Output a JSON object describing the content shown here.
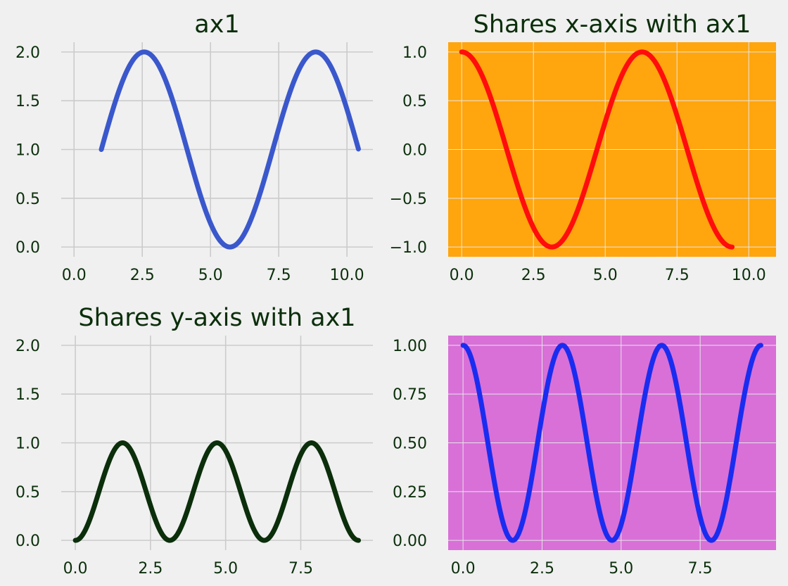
{
  "figure": {
    "background": "#f0f0f0",
    "text_color": "#0b2e0b",
    "grid_color": "#cbcbcb"
  },
  "chart_data": [
    {
      "id": "ax1",
      "type": "line",
      "title": "ax1",
      "xlabel": "",
      "ylabel": "",
      "facecolor": "#f0f0f0",
      "grid": true,
      "xlim": [
        -0.47,
        10.95
      ],
      "ylim": [
        -0.1,
        2.1
      ],
      "xticks": [
        0.0,
        2.5,
        5.0,
        7.5,
        10.0
      ],
      "xtick_labels": [
        "0.0",
        "2.5",
        "5.0",
        "7.5",
        "10.0"
      ],
      "yticks": [
        0.0,
        0.5,
        1.0,
        1.5,
        2.0
      ],
      "ytick_labels": [
        "0.0",
        "0.5",
        "1.0",
        "1.5",
        "2.0"
      ],
      "series": [
        {
          "color": "#3a58cc",
          "function": "1+sin(x-1)",
          "x_range": [
            1.0,
            10.42
          ]
        }
      ]
    },
    {
      "id": "ax2",
      "type": "line",
      "title": "Shares x-axis with ax1",
      "xlabel": "",
      "ylabel": "",
      "facecolor": "#ffa50d",
      "grid": true,
      "xlim": [
        -0.47,
        10.95
      ],
      "ylim": [
        -1.1,
        1.1
      ],
      "xticks": [
        0.0,
        2.5,
        5.0,
        7.5,
        10.0
      ],
      "xtick_labels": [
        "0.0",
        "2.5",
        "5.0",
        "7.5",
        "10.0"
      ],
      "yticks": [
        -1.0,
        -0.5,
        0.0,
        0.5,
        1.0
      ],
      "ytick_labels": [
        "−1.0",
        "−0.5",
        "0.0",
        "0.5",
        "1.0"
      ],
      "series": [
        {
          "color": "#ff0d0d",
          "function": "cos(x)",
          "x_range": [
            0.0,
            9.42
          ]
        }
      ]
    },
    {
      "id": "ax3",
      "type": "line",
      "title": "Shares y-axis with ax1",
      "xlabel": "",
      "ylabel": "",
      "facecolor": "#f0f0f0",
      "grid": true,
      "xlim": [
        -0.47,
        9.9
      ],
      "ylim": [
        -0.1,
        2.1
      ],
      "xticks": [
        0.0,
        2.5,
        5.0,
        7.5
      ],
      "xtick_labels": [
        "0.0",
        "2.5",
        "5.0",
        "7.5"
      ],
      "yticks": [
        0.0,
        0.5,
        1.0,
        1.5,
        2.0
      ],
      "ytick_labels": [
        "0.0",
        "0.5",
        "1.0",
        "1.5",
        "2.0"
      ],
      "series": [
        {
          "color": "#0b2e0b",
          "function": "sin(x)^2",
          "x_range": [
            0.0,
            9.42
          ]
        }
      ]
    },
    {
      "id": "ax4",
      "type": "line",
      "title": "",
      "xlabel": "",
      "ylabel": "",
      "facecolor": "#d870d8",
      "grid": true,
      "xlim": [
        -0.47,
        9.9
      ],
      "ylim": [
        -0.05,
        1.05
      ],
      "xticks": [
        0.0,
        2.5,
        5.0,
        7.5
      ],
      "xtick_labels": [
        "0.0",
        "2.5",
        "5.0",
        "7.5"
      ],
      "yticks": [
        0.0,
        0.25,
        0.5,
        0.75,
        1.0
      ],
      "ytick_labels": [
        "0.00",
        "0.25",
        "0.50",
        "0.75",
        "1.00"
      ],
      "series": [
        {
          "color": "#1a2cf0",
          "function": "cos(x)^2",
          "x_range": [
            0.0,
            9.42
          ]
        }
      ]
    }
  ]
}
